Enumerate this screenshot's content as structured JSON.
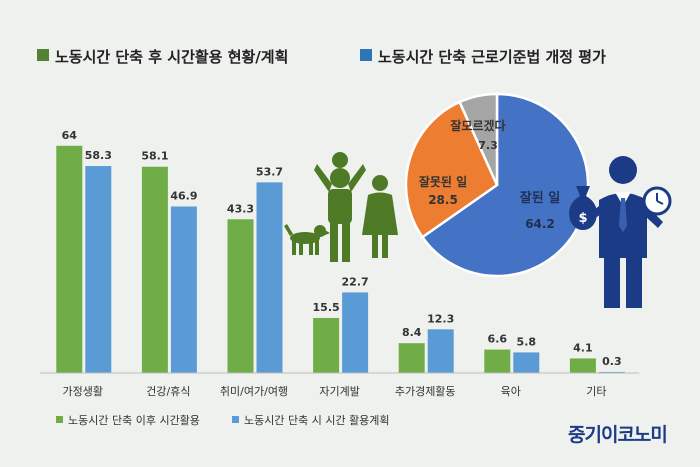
{
  "header": {
    "left_title": "노동시간 단축 후 시간활용 현황/계획",
    "right_title": "노동시간 단축 근로기준법 개정 평가"
  },
  "colors": {
    "series_after": "#70ad47",
    "series_plan": "#5b9bd5",
    "pie_good": "#4472c4",
    "pie_bad": "#ed7d31",
    "pie_unknown": "#a5a5a5",
    "brand": "#1b3b86"
  },
  "chart_data": [
    {
      "type": "bar",
      "categories": [
        "가정생활",
        "건강/휴식",
        "취미/여가/여행",
        "자기계발",
        "추가경제활동",
        "육아",
        "기타"
      ],
      "series": [
        {
          "name": "노동시간 단축 이후 시간활용",
          "values": [
            64,
            58.1,
            43.3,
            15.5,
            8.4,
            6.6,
            4.1
          ]
        },
        {
          "name": "노동시간 단축 시 시간 활용계획",
          "values": [
            58.3,
            46.9,
            53.7,
            22.7,
            12.3,
            5.8,
            0.3
          ]
        }
      ],
      "ylim": [
        0,
        70
      ],
      "grid": false,
      "legend": "bottom-left"
    },
    {
      "type": "pie",
      "labels": [
        "잘된 일",
        "잘못된 일",
        "잘모르겠다"
      ],
      "values": [
        64.2,
        28.5,
        7.3
      ]
    }
  ],
  "icons": [
    "family-illustration-icon",
    "dog-icon",
    "businessman-icon",
    "money-bag-icon",
    "clock-icon"
  ],
  "brand": "중기이코노미"
}
